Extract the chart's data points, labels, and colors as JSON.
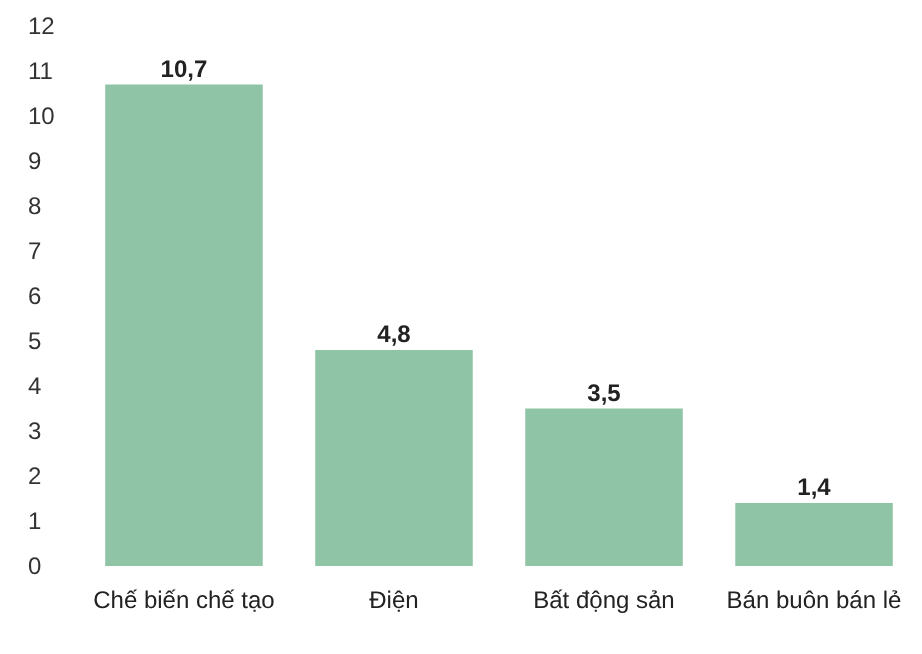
{
  "chart_data": {
    "type": "bar",
    "categories": [
      "Chế biến chế tạo",
      "Điện",
      "Bất động sản",
      "Bán buôn bán lẻ"
    ],
    "values": [
      10.7,
      4.8,
      3.5,
      1.4
    ],
    "color": "#8fc4a6",
    "value_labels": [
      "10,7",
      "4,8",
      "3,5",
      "1,4"
    ],
    "ylim": [
      0,
      12
    ],
    "yticks": [
      0,
      1,
      2,
      3,
      4,
      5,
      6,
      7,
      8,
      9,
      10,
      11,
      12
    ]
  }
}
